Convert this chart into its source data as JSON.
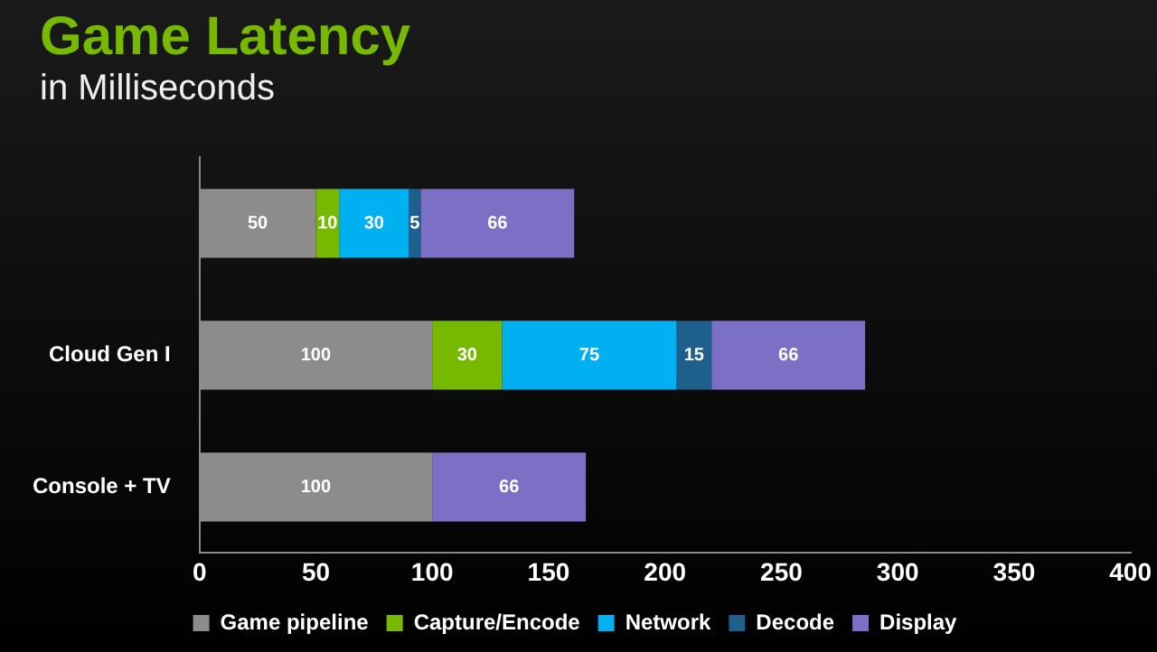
{
  "chart_data": {
    "type": "bar",
    "title": "Game Latency",
    "subtitle": "in Milliseconds",
    "orientation": "horizontal",
    "stacked": true,
    "categories": [
      null,
      "Cloud Gen I",
      "Console + TV"
    ],
    "series": [
      {
        "name": "Game pipeline",
        "color": "#8c8c8c",
        "values": [
          50,
          100,
          100
        ]
      },
      {
        "name": "Capture/Encode",
        "color": "#76b900",
        "values": [
          10,
          30,
          null
        ]
      },
      {
        "name": "Network",
        "color": "#00b0f0",
        "values": [
          30,
          75,
          null
        ]
      },
      {
        "name": "Decode",
        "color": "#1f5f8b",
        "values": [
          5,
          15,
          null
        ]
      },
      {
        "name": "Display",
        "color": "#7b6fc6",
        "values": [
          66,
          66,
          66
        ]
      }
    ],
    "xlim": [
      0,
      400
    ],
    "xticks": [
      0,
      50,
      100,
      150,
      200,
      250,
      300,
      350,
      400
    ],
    "grid": false,
    "legend": "bottom",
    "data_labels": true
  }
}
